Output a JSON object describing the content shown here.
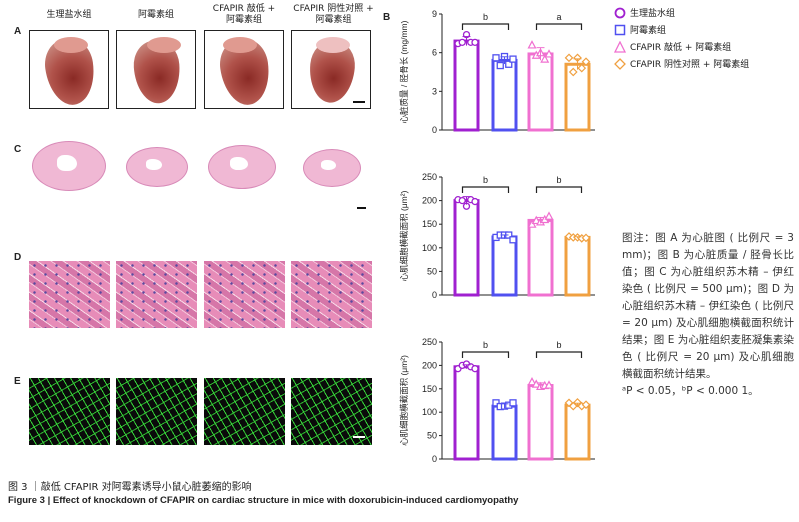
{
  "panel_labels": {
    "A": "A",
    "B": "B",
    "C": "C",
    "D": "D",
    "E": "E"
  },
  "groups": [
    "生理盐水组",
    "阿霉素组",
    "CFAPIR 敲低 + 阿霉素组",
    "CFAPIR 阴性对照 + 阿霉素组"
  ],
  "group_titles": [
    [
      "生理盐水组",
      ""
    ],
    [
      "阿霉素组",
      ""
    ],
    [
      "CFAPIR 敲低 +",
      "阿霉素组"
    ],
    [
      "CFAPIR 阴性对照 +",
      "阿霉素组"
    ]
  ],
  "legend_markers": [
    "circle",
    "square",
    "triangle",
    "diamond"
  ],
  "colors": [
    "#A020D0",
    "#5050F0",
    "#F070D0",
    "#F0A040"
  ],
  "caption_note": "图注：图 A 为心脏图 ( 比例尺 = 3 mm)；图 B 为心脏质量 / 胫骨长比值；图 C 为心脏组织苏木精 – 伊红染色 ( 比例尺 = 500 μm)；图 D 为心脏组织苏木精 – 伊红染色 ( 比例尺 = 20 μm) 及心肌细胞横截面积统计结果；图 E 为心脏组织麦胚凝集素染色 ( 比例尺 = 20 μm) 及心肌细胞横截面积统计结果。",
  "caption_p": "ᵃP < 0.05，ᵇP < 0.000 1。",
  "figure_title_cn": "图 3 ｜敲低 CFAPIR 对阿霉素诱导小鼠心脏萎缩的影响",
  "figure_title_en": "Figure 3  |  Effect of knockdown of CFAPIR on cardiac structure in mice with doxorubicin-induced cardiomyopathy",
  "chart_data": [
    {
      "type": "bar",
      "panel": "B",
      "ylabel": "心脏质量 / 胫骨长 (mg/mm)",
      "ylim": [
        0,
        9
      ],
      "ticks": [
        0,
        3,
        6,
        9
      ],
      "categories": [
        "生理盐水组",
        "阿霉素组",
        "CFAPIR 敲低 + 阿霉素组",
        "CFAPIR 阴性对照 + 阿霉素组"
      ],
      "values": [
        6.9,
        5.4,
        5.9,
        5.1
      ],
      "points": [
        [
          6.7,
          6.8,
          7.4,
          6.8,
          6.8
        ],
        [
          5.6,
          5.0,
          5.7,
          5.1,
          5.5
        ],
        [
          6.6,
          5.8,
          6.0,
          5.5,
          5.9
        ],
        [
          5.6,
          4.5,
          5.6,
          4.8,
          5.3
        ]
      ],
      "significance": [
        {
          "pair": [
            0,
            1
          ],
          "label": "b"
        },
        {
          "pair": [
            2,
            3
          ],
          "label": "a"
        }
      ]
    },
    {
      "type": "bar",
      "panel": "D",
      "ylabel": "心肌细胞横截面积 (μm²)",
      "ylim": [
        0,
        250
      ],
      "ticks": [
        0,
        50,
        100,
        150,
        200,
        250
      ],
      "categories": [
        "生理盐水组",
        "阿霉素组",
        "CFAPIR 敲低 + 阿霉素组",
        "CFAPIR 阴性对照 + 阿霉素组"
      ],
      "values": [
        200,
        123,
        158,
        122
      ],
      "points": [
        [
          202,
          200,
          188,
          202,
          198
        ],
        [
          122,
          127,
          127,
          127,
          117
        ],
        [
          150,
          158,
          155,
          160,
          167
        ],
        [
          124,
          122,
          122,
          120,
          121
        ]
      ],
      "significance": [
        {
          "pair": [
            0,
            1
          ],
          "label": "b"
        },
        {
          "pair": [
            2,
            3
          ],
          "label": "b"
        }
      ]
    },
    {
      "type": "bar",
      "panel": "E",
      "ylabel": "心肌细胞横截面积 (μm²)",
      "ylim": [
        0,
        250
      ],
      "ticks": [
        0,
        50,
        100,
        150,
        200,
        250
      ],
      "categories": [
        "生理盐水组",
        "阿霉素组",
        "CFAPIR 敲低 + 阿霉素组",
        "CFAPIR 阴性对照 + 阿霉素组"
      ],
      "values": [
        197,
        113,
        157,
        115
      ],
      "points": [
        [
          193,
          200,
          203,
          197,
          193
        ],
        [
          120,
          112,
          113,
          115,
          120
        ],
        [
          165,
          160,
          155,
          157,
          158
        ],
        [
          120,
          113,
          121,
          113,
          116
        ]
      ],
      "significance": [
        {
          "pair": [
            0,
            1
          ],
          "label": "b"
        },
        {
          "pair": [
            2,
            3
          ],
          "label": "b"
        }
      ]
    }
  ]
}
